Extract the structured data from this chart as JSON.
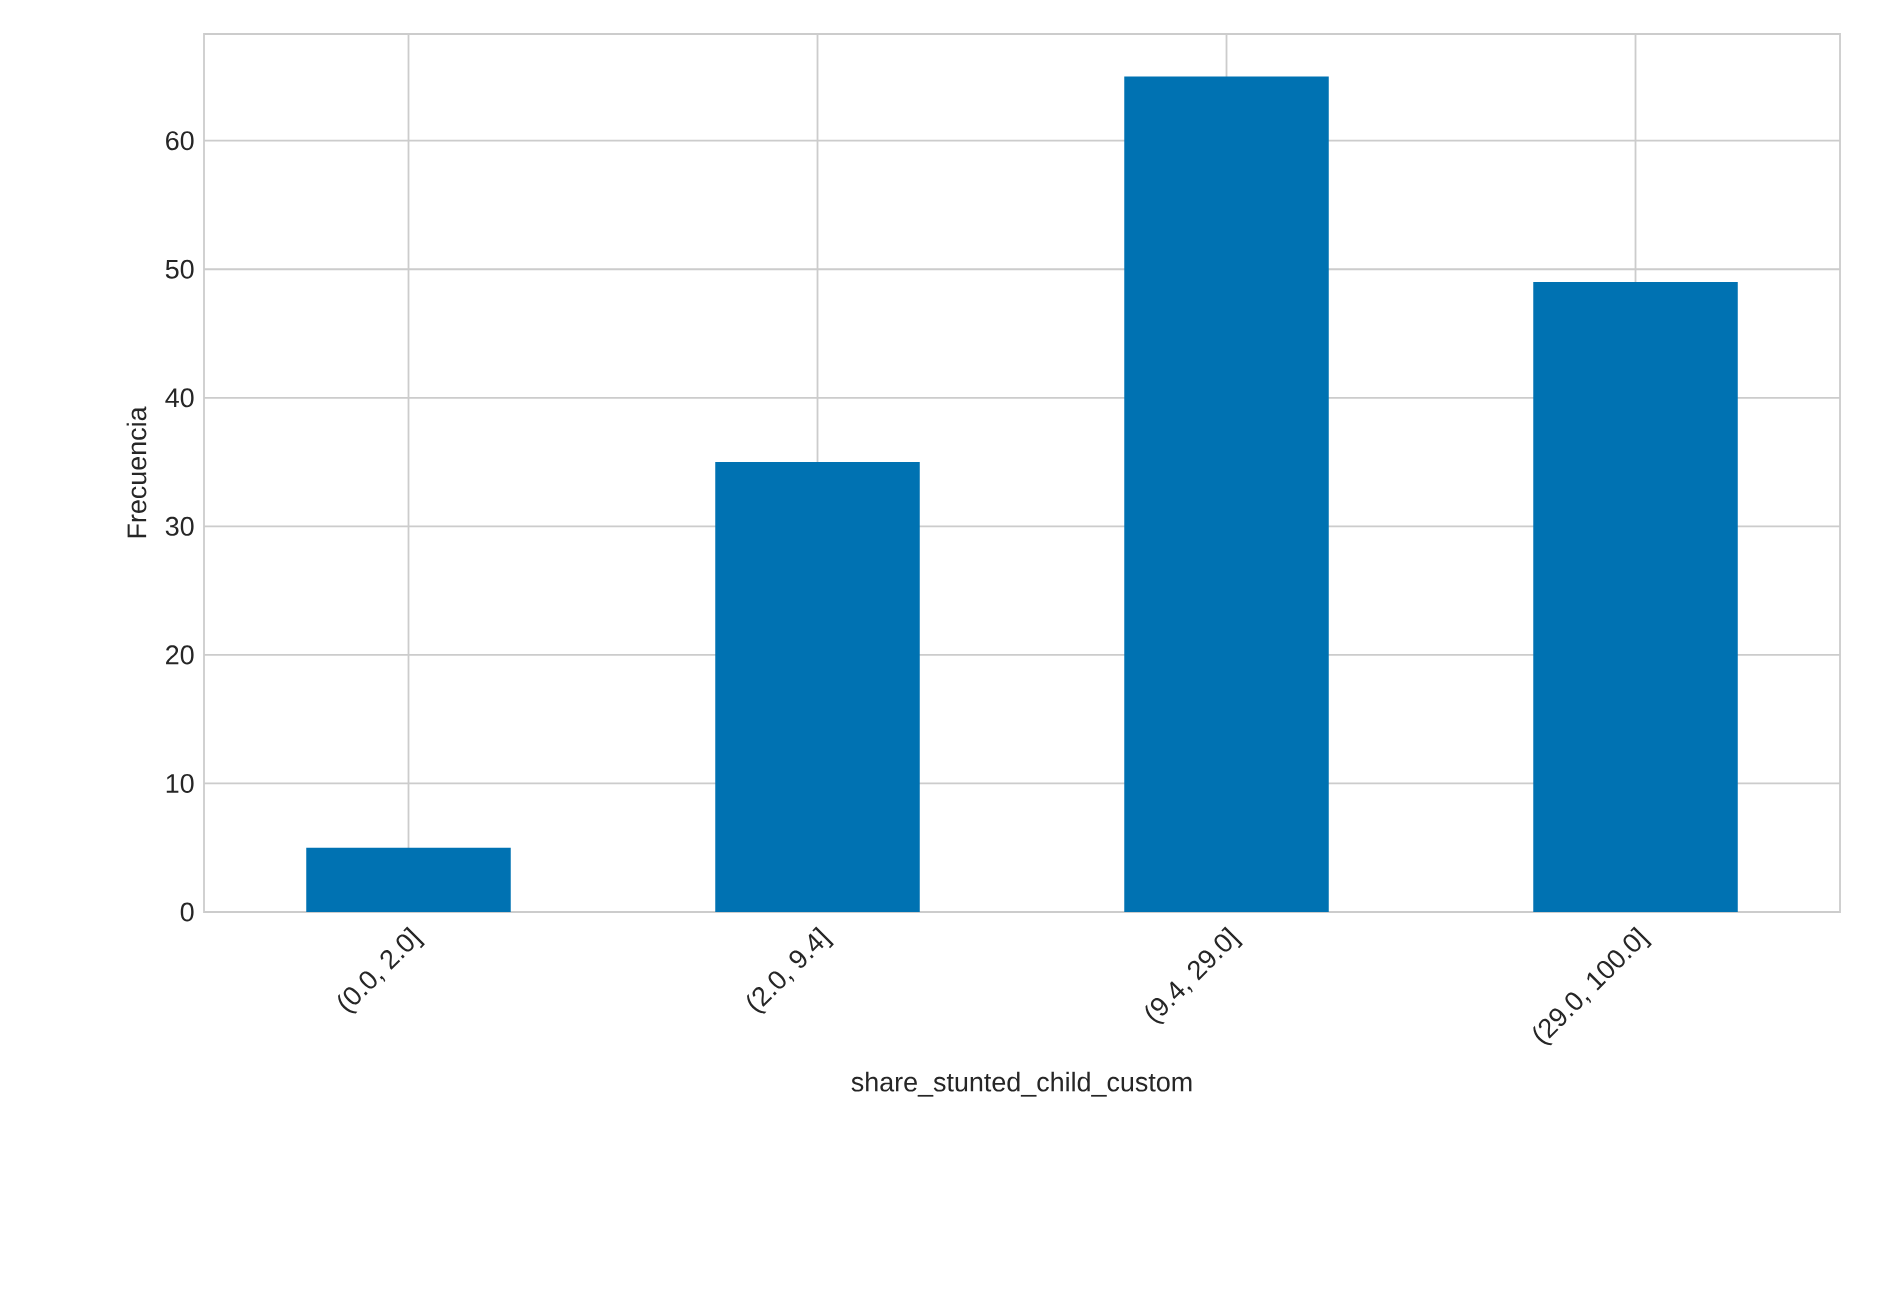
{
  "chart_data": {
    "type": "bar",
    "xlabel": "share_stunted_child_custom",
    "ylabel": "Frecuencia",
    "categories": [
      "(0.0, 2.0]",
      "(2.0, 9.4]",
      "(9.4, 29.0]",
      "(29.0, 100.0]"
    ],
    "values": [
      5,
      35,
      65,
      49
    ],
    "color": "#0072b2",
    "ylim": [
      0,
      68.3
    ],
    "yticks": [
      0,
      10,
      20,
      30,
      40,
      50,
      60
    ],
    "grid": true
  }
}
